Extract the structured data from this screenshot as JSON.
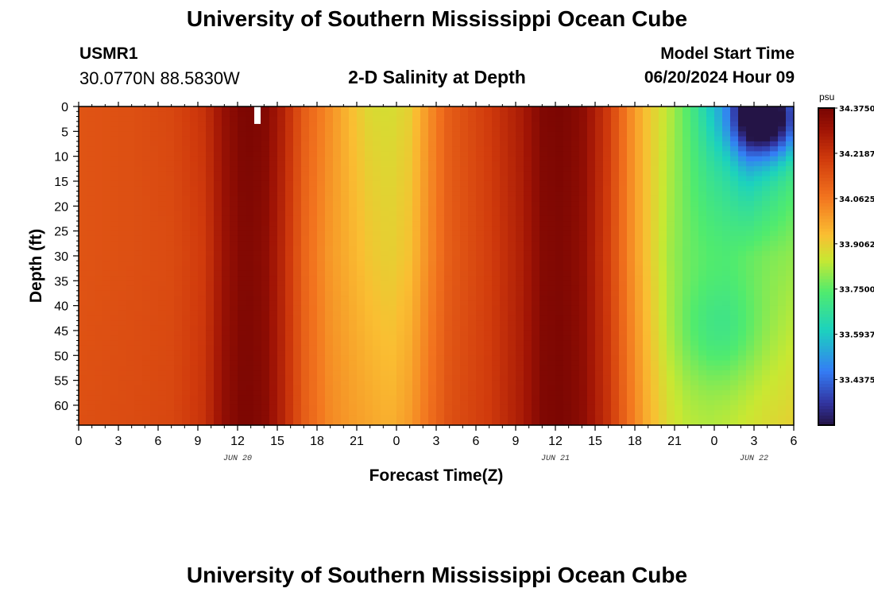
{
  "header": {
    "title": "University of Southern Mississippi Ocean Cube",
    "station": "USMR1",
    "coordinates": "30.0770N  88.5830W",
    "subtitle": "2-D Salinity at Depth",
    "model_start_label": "Model Start Time",
    "model_start_value": "06/20/2024 Hour 09"
  },
  "footer": {
    "title": "University of Southern Mississippi Ocean Cube"
  },
  "chart_data": {
    "type": "heatmap",
    "xlabel": "Forecast Time(Z)",
    "ylabel": "Depth (ft)",
    "x_tick_labels": [
      "0",
      "3",
      "6",
      "9",
      "12",
      "15",
      "18",
      "21",
      "0",
      "3",
      "6",
      "9",
      "12",
      "15",
      "18",
      "21",
      "0",
      "3",
      "6"
    ],
    "x_hours": [
      0,
      3,
      6,
      9,
      12,
      15,
      18,
      21,
      24,
      27,
      30,
      33,
      36,
      39,
      42,
      45,
      48,
      51,
      54
    ],
    "xlim_hours": [
      0,
      54
    ],
    "day_labels": [
      {
        "text": "JUN 20",
        "hour": 12
      },
      {
        "text": "JUN 21",
        "hour": 36
      },
      {
        "text": "JUN 22",
        "hour": 51
      }
    ],
    "y_ticks": [
      0,
      5,
      10,
      15,
      20,
      25,
      30,
      35,
      40,
      45,
      50,
      55,
      60
    ],
    "ylim": [
      0,
      64
    ],
    "y_inverted": true,
    "colorbar": {
      "unit": "psu",
      "min": 33.28,
      "max": 34.375,
      "tick_labels": [
        "34.3750",
        "34.2187",
        "34.0625",
        "33.9062",
        "33.7500",
        "33.5937",
        "33.4375"
      ],
      "tick_values": [
        34.375,
        34.21875,
        34.0625,
        33.90625,
        33.75,
        33.59375,
        33.4375
      ]
    },
    "salinity_profile": {
      "description_hours": [
        0,
        4,
        7,
        9.5,
        11,
        12.5,
        14,
        15.5,
        17,
        19,
        20.5,
        22,
        23.5,
        25,
        26.5,
        28,
        31,
        33.5,
        35,
        36.5,
        38,
        40,
        41.5,
        43,
        44.5,
        46,
        47.5,
        49,
        50.5,
        52,
        54
      ],
      "surface": [
        34.14,
        34.15,
        34.17,
        34.22,
        34.32,
        34.37,
        34.36,
        34.26,
        34.12,
        34.02,
        33.94,
        33.88,
        33.87,
        33.9,
        34.02,
        34.12,
        34.2,
        34.28,
        34.36,
        34.37,
        34.34,
        34.2,
        34.04,
        33.92,
        33.84,
        33.74,
        33.62,
        33.55,
        33.4,
        33.48,
        33.62
      ],
      "mid": [
        34.14,
        34.15,
        34.16,
        34.2,
        34.31,
        34.36,
        34.34,
        34.24,
        34.1,
        34.0,
        33.96,
        33.92,
        33.9,
        33.93,
        34.03,
        34.12,
        34.19,
        34.27,
        34.35,
        34.36,
        34.33,
        34.19,
        34.04,
        33.92,
        33.82,
        33.77,
        33.75,
        33.74,
        33.76,
        33.78,
        33.8
      ],
      "bottom": [
        34.15,
        34.16,
        34.17,
        34.22,
        34.33,
        34.37,
        34.35,
        34.25,
        34.12,
        34.03,
        34.0,
        33.98,
        33.96,
        34.0,
        34.08,
        34.15,
        34.2,
        34.28,
        34.36,
        34.37,
        34.34,
        34.22,
        34.08,
        33.96,
        33.88,
        33.84,
        33.83,
        33.84,
        33.86,
        33.88,
        33.9
      ]
    },
    "missing_marker": {
      "hour": 13.5,
      "depth_from": 0,
      "depth_to": 3.5
    }
  }
}
